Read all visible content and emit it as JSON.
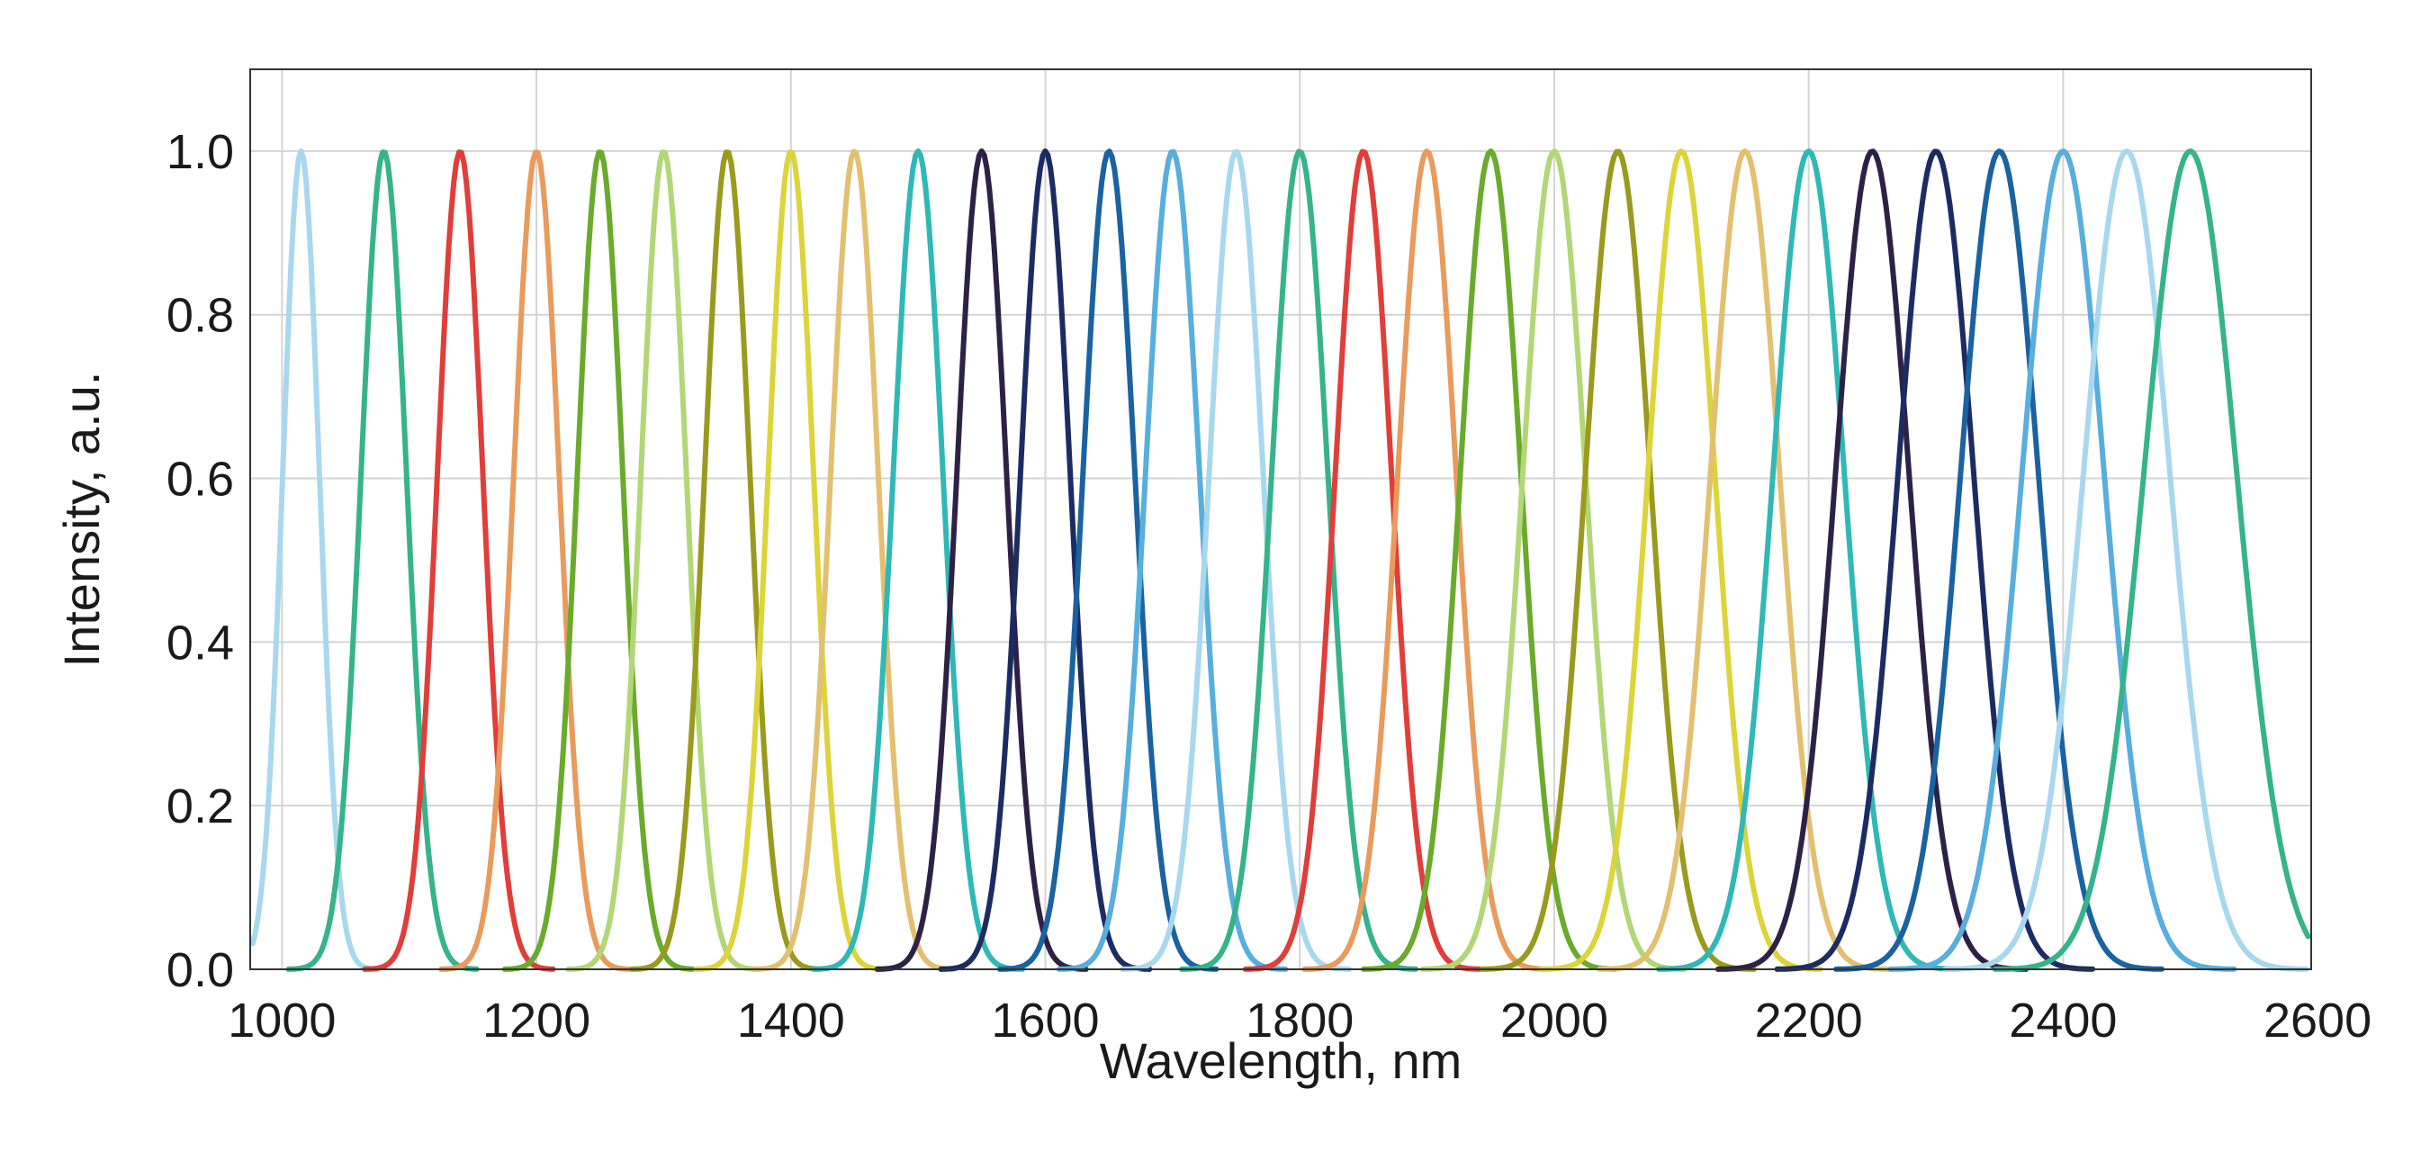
{
  "chart_data": {
    "type": "line",
    "title": "",
    "xlabel": "Wavelength, nm",
    "ylabel": "Intensity, a.u.",
    "xlim": [
      975,
      2595
    ],
    "ylim": [
      0,
      1.1
    ],
    "grid": true,
    "legend": "none",
    "x_ticks": [
      1000,
      1200,
      1400,
      1600,
      1800,
      2000,
      2200,
      2400,
      2600
    ],
    "x_tick_labels": [
      "1000",
      "1200",
      "1400",
      "1600",
      "1800",
      "2000",
      "2200",
      "2400",
      "2600"
    ],
    "y_ticks": [
      0.0,
      0.2,
      0.4,
      0.6,
      0.8,
      1.0
    ],
    "y_tick_labels": [
      "0.0",
      "0.2",
      "0.4",
      "0.6",
      "0.8",
      "1.0"
    ],
    "series": [
      {
        "center": 1015,
        "fwhm": 34,
        "color": "#a8d8ee"
      },
      {
        "center": 1080,
        "fwhm": 42,
        "color": "#36b38a"
      },
      {
        "center": 1140,
        "fwhm": 42,
        "color": "#e03e3a"
      },
      {
        "center": 1200,
        "fwhm": 42,
        "color": "#e89b5c"
      },
      {
        "center": 1250,
        "fwhm": 42,
        "color": "#6aaa2c"
      },
      {
        "center": 1300,
        "fwhm": 42,
        "color": "#b3d676"
      },
      {
        "center": 1350,
        "fwhm": 42,
        "color": "#9a9a1e"
      },
      {
        "center": 1400,
        "fwhm": 42,
        "color": "#dcd43a"
      },
      {
        "center": 1450,
        "fwhm": 44,
        "color": "#e2c070"
      },
      {
        "center": 1500,
        "fwhm": 46,
        "color": "#30b8b6"
      },
      {
        "center": 1550,
        "fwhm": 46,
        "color": "#2e2146"
      },
      {
        "center": 1600,
        "fwhm": 46,
        "color": "#1c2c62"
      },
      {
        "center": 1650,
        "fwhm": 48,
        "color": "#1a62a0"
      },
      {
        "center": 1700,
        "fwhm": 50,
        "color": "#58aedc"
      },
      {
        "center": 1750,
        "fwhm": 50,
        "color": "#a8d8ee"
      },
      {
        "center": 1800,
        "fwhm": 52,
        "color": "#36b38a"
      },
      {
        "center": 1850,
        "fwhm": 52,
        "color": "#e03e3a"
      },
      {
        "center": 1900,
        "fwhm": 54,
        "color": "#e89b5c"
      },
      {
        "center": 1950,
        "fwhm": 56,
        "color": "#6aaa2c"
      },
      {
        "center": 2000,
        "fwhm": 58,
        "color": "#b3d676"
      },
      {
        "center": 2050,
        "fwhm": 60,
        "color": "#9a9a1e"
      },
      {
        "center": 2100,
        "fwhm": 62,
        "color": "#dcd43a"
      },
      {
        "center": 2150,
        "fwhm": 64,
        "color": "#e2c070"
      },
      {
        "center": 2200,
        "fwhm": 66,
        "color": "#30b8b6"
      },
      {
        "center": 2250,
        "fwhm": 68,
        "color": "#2e2146"
      },
      {
        "center": 2300,
        "fwhm": 70,
        "color": "#1c2c62"
      },
      {
        "center": 2350,
        "fwhm": 72,
        "color": "#1a62a0"
      },
      {
        "center": 2400,
        "fwhm": 76,
        "color": "#58aedc"
      },
      {
        "center": 2450,
        "fwhm": 80,
        "color": "#a8d8ee"
      },
      {
        "center": 2500,
        "fwhm": 86,
        "color": "#36b38a"
      }
    ],
    "peak_value": 1.0
  }
}
